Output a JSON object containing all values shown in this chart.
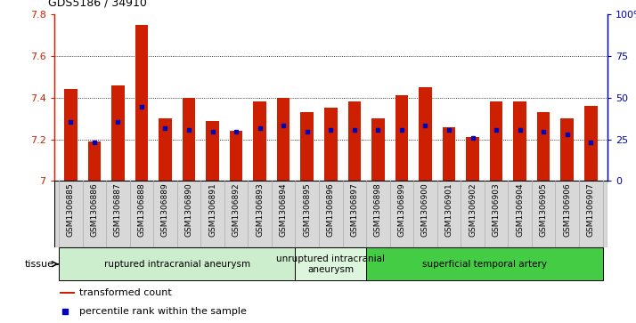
{
  "title": "GDS5186 / 34910",
  "samples": [
    "GSM1306885",
    "GSM1306886",
    "GSM1306887",
    "GSM1306888",
    "GSM1306889",
    "GSM1306890",
    "GSM1306891",
    "GSM1306892",
    "GSM1306893",
    "GSM1306894",
    "GSM1306895",
    "GSM1306896",
    "GSM1306897",
    "GSM1306898",
    "GSM1306899",
    "GSM1306900",
    "GSM1306901",
    "GSM1306902",
    "GSM1306903",
    "GSM1306904",
    "GSM1306905",
    "GSM1306906",
    "GSM1306907"
  ],
  "bar_values": [
    7.44,
    7.19,
    7.46,
    7.75,
    7.3,
    7.4,
    7.29,
    7.24,
    7.38,
    7.4,
    7.33,
    7.35,
    7.38,
    7.3,
    7.41,
    7.45,
    7.26,
    7.21,
    7.38,
    7.38,
    7.33,
    7.3,
    7.36
  ],
  "percentile_values": [
    7.285,
    7.185,
    7.285,
    7.355,
    7.255,
    7.245,
    7.235,
    7.235,
    7.255,
    7.265,
    7.235,
    7.245,
    7.245,
    7.245,
    7.245,
    7.265,
    7.245,
    7.205,
    7.245,
    7.245,
    7.235,
    7.225,
    7.185
  ],
  "ymin": 7.0,
  "ymax": 7.8,
  "yticks": [
    7.0,
    7.2,
    7.4,
    7.6,
    7.8
  ],
  "ytick_labels": [
    "7",
    "7.2",
    "7.4",
    "7.6",
    "7.8"
  ],
  "right_yticks": [
    0,
    25,
    50,
    75,
    100
  ],
  "right_ytick_labels": [
    "0",
    "25",
    "50",
    "75",
    "100%"
  ],
  "grid_lines": [
    7.2,
    7.4,
    7.6
  ],
  "bar_color": "#cc2000",
  "dot_color": "#0000bb",
  "left_axis_color": "#cc2000",
  "right_axis_color": "#0000bb",
  "xlabel_bg_color": "#d8d8d8",
  "groups": [
    {
      "label": "ruptured intracranial aneurysm",
      "start": 0,
      "end": 9,
      "color": "#cceecc"
    },
    {
      "label": "unruptured intracranial\naneurysm",
      "start": 10,
      "end": 12,
      "color": "#ddf5dd"
    },
    {
      "label": "superficial temporal artery",
      "start": 13,
      "end": 22,
      "color": "#44cc44"
    }
  ],
  "tissue_label": "tissue",
  "legend_bar_label": "transformed count",
  "legend_dot_label": "percentile rank within the sample"
}
